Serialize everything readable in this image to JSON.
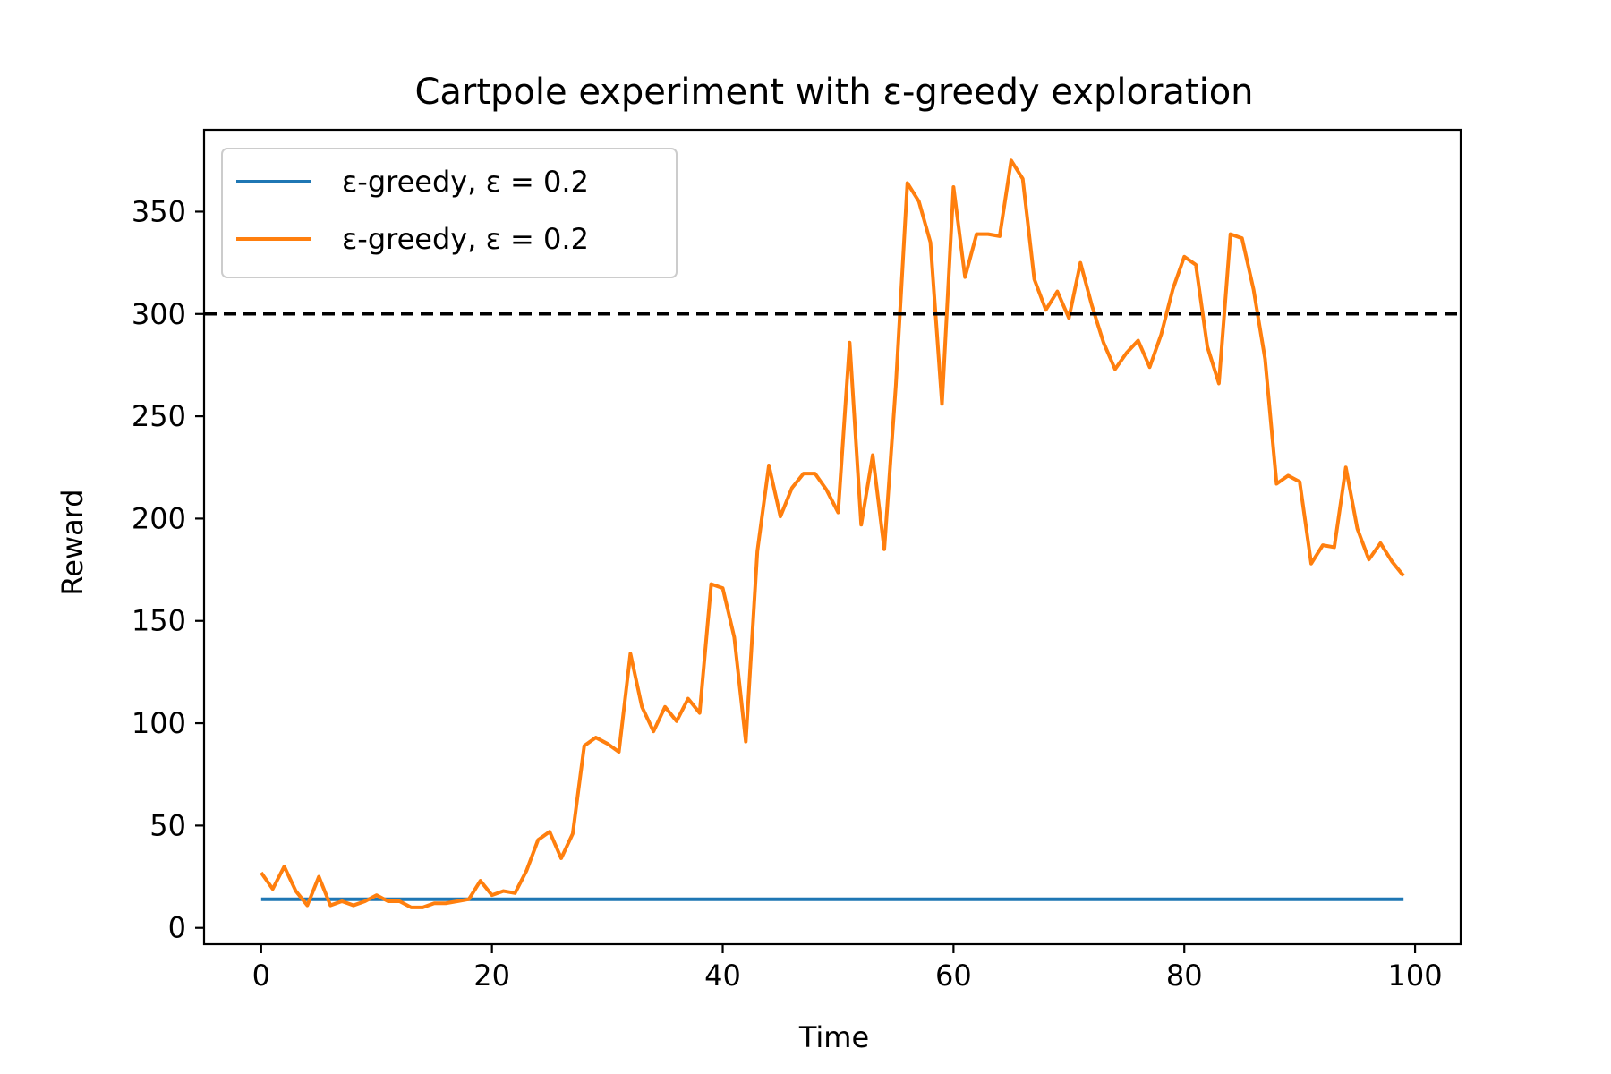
{
  "chart_data": {
    "type": "line",
    "title": "Cartpole experiment with ε-greedy exploration",
    "xlabel": "Time",
    "ylabel": "Reward",
    "xlim": [
      -4.95,
      103.95
    ],
    "ylim": [
      -8,
      390
    ],
    "xticks": [
      0,
      20,
      40,
      60,
      80,
      100
    ],
    "xtick_labels": [
      "0",
      "20",
      "40",
      "60",
      "80",
      "100"
    ],
    "yticks": [
      0,
      50,
      100,
      150,
      200,
      250,
      300,
      350
    ],
    "ytick_labels": [
      "0",
      "50",
      "100",
      "150",
      "200",
      "250",
      "300",
      "350"
    ],
    "grid": false,
    "legend_position": "top-left",
    "reference_line": {
      "y": 300,
      "style": "dashed",
      "color": "#000000"
    },
    "x": [
      0,
      1,
      2,
      3,
      4,
      5,
      6,
      7,
      8,
      9,
      10,
      11,
      12,
      13,
      14,
      15,
      16,
      17,
      18,
      19,
      20,
      21,
      22,
      23,
      24,
      25,
      26,
      27,
      28,
      29,
      30,
      31,
      32,
      33,
      34,
      35,
      36,
      37,
      38,
      39,
      40,
      41,
      42,
      43,
      44,
      45,
      46,
      47,
      48,
      49,
      50,
      51,
      52,
      53,
      54,
      55,
      56,
      57,
      58,
      59,
      60,
      61,
      62,
      63,
      64,
      65,
      66,
      67,
      68,
      69,
      70,
      71,
      72,
      73,
      74,
      75,
      76,
      77,
      78,
      79,
      80,
      81,
      82,
      83,
      84,
      85,
      86,
      87,
      88,
      89,
      90,
      91,
      92,
      93,
      94,
      95,
      96,
      97,
      98,
      99
    ],
    "series": [
      {
        "name": "ε-greedy, ε = 0.2",
        "color": "#1f77b4",
        "values": [
          14,
          14,
          14,
          14,
          14,
          14,
          14,
          14,
          14,
          14,
          14,
          14,
          14,
          14,
          14,
          14,
          14,
          14,
          14,
          14,
          14,
          14,
          14,
          14,
          14,
          14,
          14,
          14,
          14,
          14,
          14,
          14,
          14,
          14,
          14,
          14,
          14,
          14,
          14,
          14,
          14,
          14,
          14,
          14,
          14,
          14,
          14,
          14,
          14,
          14,
          14,
          14,
          14,
          14,
          14,
          14,
          14,
          14,
          14,
          14,
          14,
          14,
          14,
          14,
          14,
          14,
          14,
          14,
          14,
          14,
          14,
          14,
          14,
          14,
          14,
          14,
          14,
          14,
          14,
          14,
          14,
          14,
          14,
          14,
          14,
          14,
          14,
          14,
          14,
          14,
          14,
          14,
          14,
          14,
          14,
          14,
          14,
          14,
          14,
          14
        ]
      },
      {
        "name": "ε-greedy, ε = 0.2",
        "color": "#ff7f0e",
        "values": [
          27,
          19,
          30,
          18,
          11,
          25,
          11,
          13,
          11,
          13,
          16,
          13,
          13,
          10,
          10,
          12,
          12,
          13,
          14,
          23,
          16,
          18,
          17,
          28,
          43,
          47,
          34,
          46,
          89,
          93,
          90,
          86,
          134,
          108,
          96,
          108,
          101,
          112,
          105,
          168,
          166,
          142,
          91,
          184,
          226,
          201,
          215,
          222,
          222,
          214,
          203,
          286,
          197,
          231,
          185,
          265,
          364,
          355,
          335,
          256,
          362,
          318,
          339,
          339,
          338,
          375,
          366,
          317,
          302,
          311,
          298,
          325,
          304,
          286,
          273,
          281,
          287,
          274,
          290,
          312,
          328,
          324,
          284,
          266,
          339,
          337,
          312,
          278,
          217,
          221,
          218,
          178,
          187,
          186,
          225,
          195,
          180,
          188,
          179,
          172
        ]
      }
    ]
  }
}
